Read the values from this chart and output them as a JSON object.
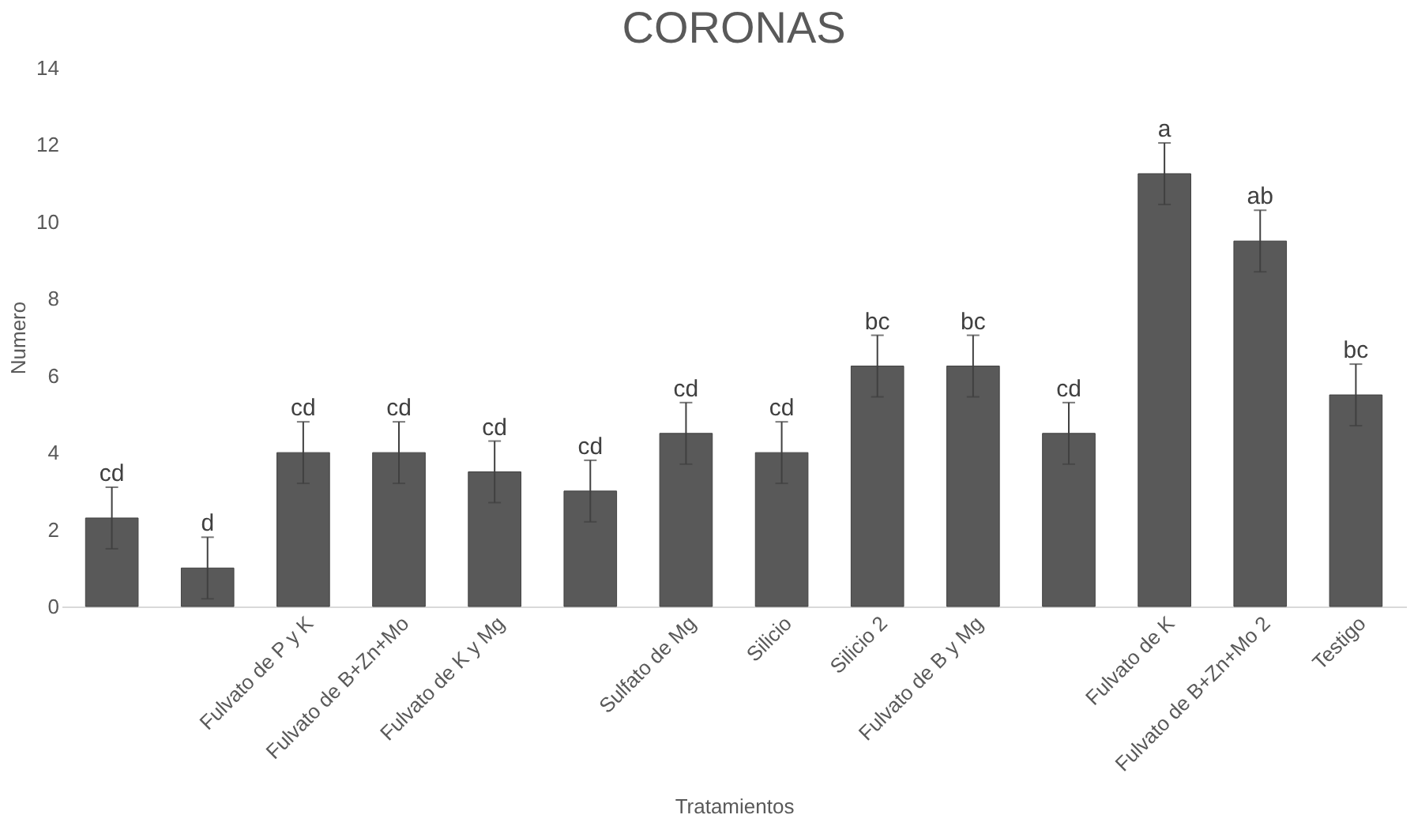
{
  "chart_data": {
    "type": "bar",
    "title": "CORONAS",
    "xlabel": "Tratamientos",
    "ylabel": "Numero",
    "categories": [
      null,
      null,
      "Fulvato de P y K",
      "Fulvato de B+Zn+Mo",
      "Fulvato de K y Mg",
      null,
      "Sulfato de Mg",
      "Silicio",
      "Silicio 2",
      "Fulvato de B y Mg",
      null,
      "Fulvato de K",
      "Fulvato de B+Zn+Mo 2",
      "Testigo"
    ],
    "values": [
      2.3,
      1.0,
      4.0,
      4.0,
      3.5,
      3.0,
      4.5,
      4.0,
      6.25,
      6.25,
      4.5,
      11.25,
      9.5,
      5.5
    ],
    "errors": [
      0.8,
      0.8,
      0.8,
      0.8,
      0.8,
      0.8,
      0.8,
      0.8,
      0.8,
      0.8,
      0.8,
      0.8,
      0.8,
      0.8
    ],
    "color": "#595959",
    "ylim": [
      0,
      14
    ],
    "yticks": [
      0,
      2,
      4,
      6,
      8,
      10,
      12,
      14
    ],
    "grid": false,
    "annotations": [
      {
        "text": "cd",
        "y": 3.1
      },
      {
        "text": "d",
        "y": 1.8
      },
      {
        "text": "cd",
        "x": "Fulvato de P y K",
        "y": 4.8
      },
      {
        "text": "cd",
        "x": "Fulvato de B+Zn+Mo",
        "y": 4.8
      },
      {
        "text": "cd",
        "x": "Fulvato de K y Mg",
        "y": 4.3
      },
      {
        "text": "cd",
        "y": 3.8
      },
      {
        "text": "cd",
        "x": "Sulfato de Mg",
        "y": 5.3
      },
      {
        "text": "cd",
        "x": "Silicio",
        "y": 4.8
      },
      {
        "text": "bc",
        "x": "Silicio 2",
        "y": 7.05
      },
      {
        "text": "bc",
        "x": "Fulvato de B y Mg",
        "y": 7.05
      },
      {
        "text": "cd",
        "y": 5.3
      },
      {
        "text": "a",
        "x": "Fulvato de K",
        "y": 12.05
      },
      {
        "text": "ab",
        "x": "Fulvato de B+Zn+Mo 2",
        "y": 10.3
      },
      {
        "text": "bc",
        "x": "Testigo",
        "y": 6.3
      }
    ]
  }
}
